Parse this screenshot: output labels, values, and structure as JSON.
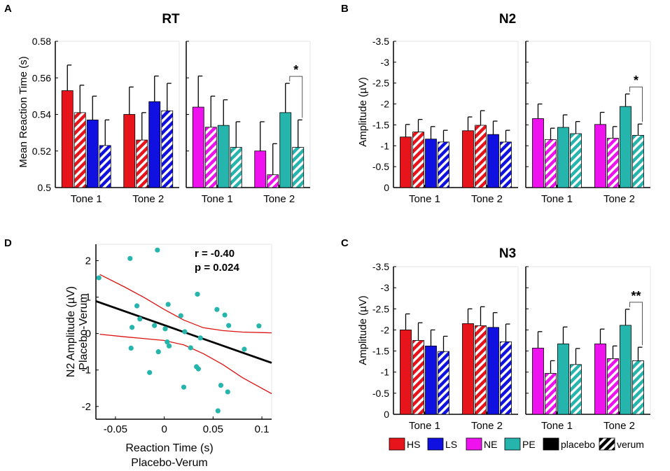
{
  "legend": {
    "items": [
      {
        "key": "HS",
        "label": "HS",
        "color": "#e8141c",
        "pattern": "solid"
      },
      {
        "key": "LS",
        "label": "LS",
        "color": "#1010e0",
        "pattern": "solid"
      },
      {
        "key": "NE",
        "label": "NE",
        "color": "#ee12ee",
        "pattern": "solid"
      },
      {
        "key": "PE",
        "label": "PE",
        "color": "#26b5ad",
        "pattern": "solid"
      },
      {
        "key": "placebo",
        "label": "placebo",
        "color": "#000000",
        "pattern": "solid"
      },
      {
        "key": "verum",
        "label": "verum",
        "color": "#000000",
        "pattern": "hatched"
      }
    ]
  },
  "chart_data": [
    {
      "id": "A",
      "panel_letter": "A",
      "type": "bar",
      "title": "RT",
      "ylabel": "Mean Reaction Time (s)",
      "reversed": false,
      "ylim": [
        0.5,
        0.58
      ],
      "yticks": [
        0.5,
        0.52,
        0.54,
        0.56,
        0.58
      ],
      "ytick_labels": [
        "0.5",
        "0.52",
        "0.54",
        "0.56",
        "0.58"
      ],
      "subplots": [
        {
          "categories": [
            "Tone 1",
            "Tone 2"
          ],
          "series": [
            {
              "name": "HS placebo",
              "group": "HS",
              "condition": "placebo",
              "values": [
                0.553,
                0.54
              ],
              "errors": [
                0.014,
                0.015
              ]
            },
            {
              "name": "HS verum",
              "group": "HS",
              "condition": "verum",
              "values": [
                0.541,
                0.526
              ],
              "errors": [
                0.015,
                0.015
              ]
            },
            {
              "name": "LS placebo",
              "group": "LS",
              "condition": "placebo",
              "values": [
                0.537,
                0.547
              ],
              "errors": [
                0.013,
                0.014
              ]
            },
            {
              "name": "LS verum",
              "group": "LS",
              "condition": "verum",
              "values": [
                0.523,
                0.542
              ],
              "errors": [
                0.014,
                0.015
              ]
            }
          ]
        },
        {
          "categories": [
            "Tone 1",
            "Tone 2"
          ],
          "series": [
            {
              "name": "NE placebo",
              "group": "NE",
              "condition": "placebo",
              "values": [
                0.544,
                0.52
              ],
              "errors": [
                0.017,
                0.016
              ]
            },
            {
              "name": "NE verum",
              "group": "NE",
              "condition": "verum",
              "values": [
                0.533,
                0.507
              ],
              "errors": [
                0.017,
                0.017
              ]
            },
            {
              "name": "PE placebo",
              "group": "PE",
              "condition": "placebo",
              "values": [
                0.534,
                0.541
              ],
              "errors": [
                0.014,
                0.016
              ]
            },
            {
              "name": "PE verum",
              "group": "PE",
              "condition": "verum",
              "values": [
                0.522,
                0.522
              ],
              "errors": [
                0.014,
                0.015
              ]
            }
          ],
          "significance": [
            {
              "category": "Tone 2",
              "from_series": 2,
              "to_series": 3,
              "label": "*"
            }
          ]
        }
      ]
    },
    {
      "id": "B",
      "panel_letter": "B",
      "type": "bar",
      "title": "N2",
      "ylabel": "Amplitude (µV)",
      "reversed": true,
      "ylim": [
        0,
        -3.5
      ],
      "yticks": [
        0,
        -0.5,
        -1,
        -1.5,
        -2,
        -2.5,
        -3,
        -3.5
      ],
      "ytick_labels": [
        "0",
        "-0.5",
        "-1",
        "-1.5",
        "-2",
        "-2.5",
        "-3",
        "-3.5"
      ],
      "subplots": [
        {
          "categories": [
            "Tone 1",
            "Tone 2"
          ],
          "series": [
            {
              "name": "HS placebo",
              "group": "HS",
              "condition": "placebo",
              "values": [
                -1.21,
                -1.36
              ],
              "errors": [
                0.3,
                0.33
              ]
            },
            {
              "name": "HS verum",
              "group": "HS",
              "condition": "verum",
              "values": [
                -1.33,
                -1.49
              ],
              "errors": [
                0.3,
                0.35
              ]
            },
            {
              "name": "LS placebo",
              "group": "LS",
              "condition": "placebo",
              "values": [
                -1.16,
                -1.27
              ],
              "errors": [
                0.3,
                0.32
              ]
            },
            {
              "name": "LS verum",
              "group": "LS",
              "condition": "verum",
              "values": [
                -1.09,
                -1.09
              ],
              "errors": [
                0.28,
                0.28
              ]
            }
          ]
        },
        {
          "categories": [
            "Tone 1",
            "Tone 2"
          ],
          "series": [
            {
              "name": "NE placebo",
              "group": "NE",
              "condition": "placebo",
              "values": [
                -1.65,
                -1.51
              ],
              "errors": [
                0.35,
                0.29
              ]
            },
            {
              "name": "NE verum",
              "group": "NE",
              "condition": "verum",
              "values": [
                -1.15,
                -1.18
              ],
              "errors": [
                0.27,
                0.28
              ]
            },
            {
              "name": "PE placebo",
              "group": "PE",
              "condition": "placebo",
              "values": [
                -1.44,
                -1.94
              ],
              "errors": [
                0.3,
                0.3
              ]
            },
            {
              "name": "PE verum",
              "group": "PE",
              "condition": "verum",
              "values": [
                -1.29,
                -1.25
              ],
              "errors": [
                0.29,
                0.27
              ]
            }
          ],
          "significance": [
            {
              "category": "Tone 2",
              "from_series": 2,
              "to_series": 3,
              "label": "*"
            }
          ]
        }
      ]
    },
    {
      "id": "C",
      "panel_letter": "C",
      "type": "bar",
      "title": "N3",
      "ylabel": "Amplitude (µV)",
      "reversed": true,
      "ylim": [
        0,
        -3.5
      ],
      "yticks": [
        0,
        -0.5,
        -1,
        -1.5,
        -2,
        -2.5,
        -3,
        -3.5
      ],
      "ytick_labels": [
        "0",
        "-0.5",
        "-1",
        "-1.5",
        "-2",
        "-2.5",
        "-3",
        "-3.5"
      ],
      "subplots": [
        {
          "categories": [
            "Tone 1",
            "Tone 2"
          ],
          "series": [
            {
              "name": "HS placebo",
              "group": "HS",
              "condition": "placebo",
              "values": [
                -2.0,
                -2.15
              ],
              "errors": [
                0.38,
                0.35
              ]
            },
            {
              "name": "HS verum",
              "group": "HS",
              "condition": "verum",
              "values": [
                -1.75,
                -2.1
              ],
              "errors": [
                0.42,
                0.45
              ]
            },
            {
              "name": "LS placebo",
              "group": "LS",
              "condition": "placebo",
              "values": [
                -1.62,
                -2.06
              ],
              "errors": [
                0.38,
                0.35
              ]
            },
            {
              "name": "LS verum",
              "group": "LS",
              "condition": "verum",
              "values": [
                -1.49,
                -1.72
              ],
              "errors": [
                0.36,
                0.42
              ]
            }
          ]
        },
        {
          "categories": [
            "Tone 1",
            "Tone 2"
          ],
          "series": [
            {
              "name": "NE placebo",
              "group": "NE",
              "condition": "placebo",
              "values": [
                -1.57,
                -1.67
              ],
              "errors": [
                0.39,
                0.35
              ]
            },
            {
              "name": "NE verum",
              "group": "NE",
              "condition": "verum",
              "values": [
                -0.97,
                -1.32
              ],
              "errors": [
                0.3,
                0.3
              ]
            },
            {
              "name": "PE placebo",
              "group": "PE",
              "condition": "placebo",
              "values": [
                -1.67,
                -2.11
              ],
              "errors": [
                0.4,
                0.38
              ]
            },
            {
              "name": "PE verum",
              "group": "PE",
              "condition": "verum",
              "values": [
                -1.18,
                -1.27
              ],
              "errors": [
                0.38,
                0.32
              ]
            }
          ],
          "significance": [
            {
              "category": "Tone 2",
              "from_series": 2,
              "to_series": 3,
              "label": "**"
            }
          ]
        }
      ]
    },
    {
      "id": "D",
      "panel_letter": "D",
      "type": "scatter",
      "xlabel": "Reaction Time (s)",
      "xlabel2": "Placebo-Verum",
      "ylabel": "N2 Amplitude (µV)",
      "ylabel2": "Placebo-Verum",
      "xlim": [
        -0.07,
        0.11
      ],
      "ylim": [
        -2.35,
        2.45
      ],
      "xticks": [
        -0.05,
        0,
        0.05,
        0.1
      ],
      "xtick_labels": [
        "-0.05",
        "0",
        "0.05",
        "0.1"
      ],
      "yticks": [
        -2,
        -1,
        0,
        1,
        2
      ],
      "ytick_labels": [
        "-2",
        "-1",
        "0",
        "1",
        "2"
      ],
      "annotation_r": "r = -0.40",
      "annotation_p": "p = 0.024",
      "points_color": "#26b5ad",
      "fit": {
        "slope": -9.4,
        "intercept": 0.23,
        "color": "#000000"
      },
      "ci": {
        "color": "#dd1111",
        "upper": [
          [
            -0.066,
            1.62
          ],
          [
            -0.04,
            1.27
          ],
          [
            -0.02,
            0.98
          ],
          [
            0,
            0.66
          ],
          [
            0.02,
            0.37
          ],
          [
            0.04,
            0.16
          ],
          [
            0.06,
            0.08
          ],
          [
            0.08,
            0.04
          ],
          [
            0.11,
            0.02
          ]
        ],
        "lower": [
          [
            -0.066,
            -0.02
          ],
          [
            -0.04,
            -0.09
          ],
          [
            -0.02,
            -0.14
          ],
          [
            0,
            -0.19
          ],
          [
            0.02,
            -0.31
          ],
          [
            0.04,
            -0.55
          ],
          [
            0.06,
            -0.85
          ],
          [
            0.08,
            -1.21
          ],
          [
            0.11,
            -1.65
          ]
        ]
      },
      "points": [
        [
          -0.067,
          1.53
        ],
        [
          -0.035,
          2.06
        ],
        [
          -0.034,
          -0.4
        ],
        [
          -0.033,
          0.17
        ],
        [
          -0.028,
          0.76
        ],
        [
          -0.025,
          0.4
        ],
        [
          -0.015,
          -1.07
        ],
        [
          -0.01,
          0.22
        ],
        [
          -0.007,
          2.29
        ],
        [
          -0.006,
          -0.5
        ],
        [
          0.001,
          0.13
        ],
        [
          0.003,
          -0.23
        ],
        [
          0.004,
          0.8
        ],
        [
          0.005,
          -0.34
        ],
        [
          0.017,
          0.49
        ],
        [
          0.02,
          -1.47
        ],
        [
          0.021,
          0.05
        ],
        [
          0.027,
          -0.39
        ],
        [
          0.033,
          -0.91
        ],
        [
          0.034,
          1.08
        ],
        [
          0.035,
          -0.97
        ],
        [
          0.037,
          -0.12
        ],
        [
          0.054,
          0.66
        ],
        [
          0.055,
          -2.12
        ],
        [
          0.058,
          -1.42
        ],
        [
          0.062,
          0.51
        ],
        [
          0.065,
          -1.6
        ],
        [
          0.066,
          0.22
        ],
        [
          0.082,
          -0.43
        ],
        [
          0.097,
          0.21
        ]
      ]
    }
  ]
}
